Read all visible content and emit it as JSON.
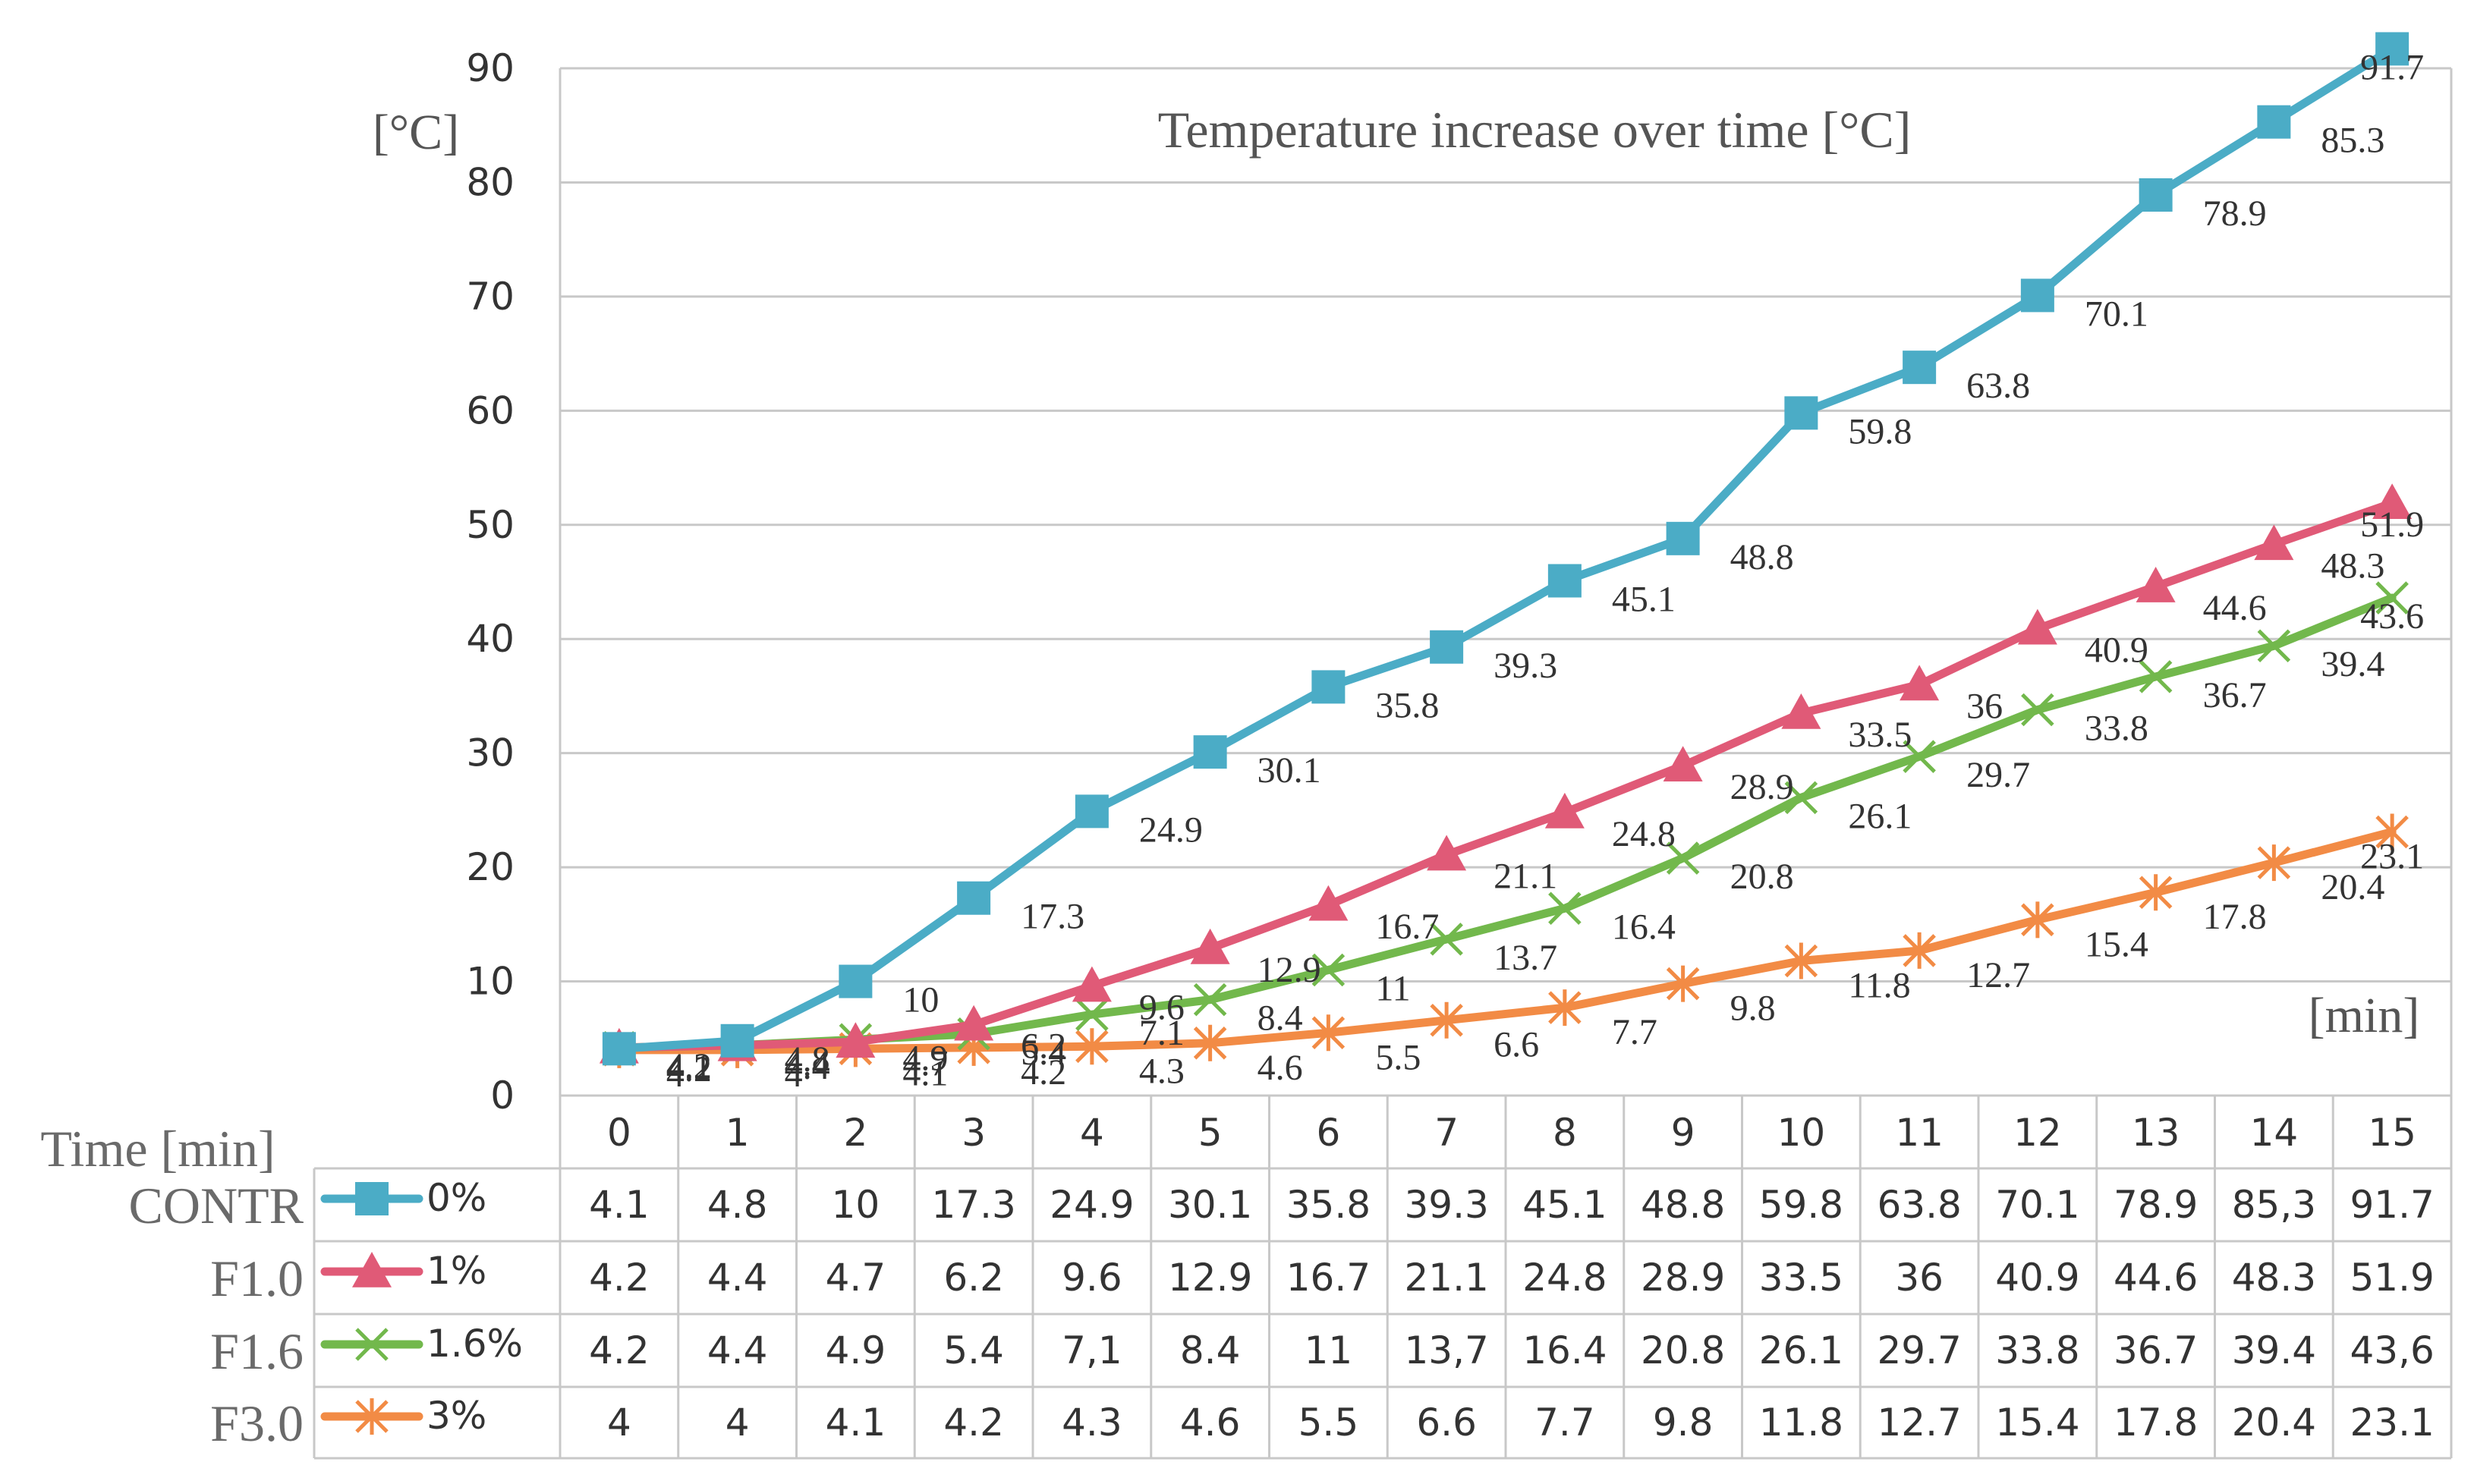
{
  "chart_data": {
    "type": "line",
    "title": "Temperature increase over time [°C]",
    "ylabel": "[°C]",
    "xlabel": "[min]",
    "table_header": "Time [min]",
    "ylim": [
      0,
      90
    ],
    "yticks": [
      "0",
      "10",
      "20",
      "30",
      "40",
      "50",
      "60",
      "70",
      "80",
      "90"
    ],
    "x": [
      0,
      1,
      2,
      3,
      4,
      5,
      6,
      7,
      8,
      9,
      10,
      11,
      12,
      13,
      14,
      15
    ],
    "x_labels": [
      "0",
      "1",
      "2",
      "3",
      "4",
      "5",
      "6",
      "7",
      "8",
      "9",
      "10",
      "11",
      "12",
      "13",
      "14",
      "15"
    ],
    "grid": true,
    "series": [
      {
        "name": "CONTR",
        "legend": "0%",
        "color": "#4bacc6",
        "marker": "square",
        "values": [
          4.1,
          4.8,
          10,
          17.3,
          24.9,
          30.1,
          35.8,
          39.3,
          45.1,
          48.8,
          59.8,
          63.8,
          70.1,
          78.9,
          85.3,
          91.7
        ],
        "labels": [
          "4.1",
          "4.8",
          "10",
          "17.3",
          "24.9",
          "30.1",
          "35.8",
          "39.3",
          "45.1",
          "48.8",
          "59.8",
          "63.8",
          "70.1",
          "78.9",
          "85.3",
          "91.7"
        ],
        "table": [
          "4.1",
          "4.8",
          "10",
          "17.3",
          "24.9",
          "30.1",
          "35.8",
          "39.3",
          "45.1",
          "48.8",
          "59.8",
          "63.8",
          "70.1",
          "78.9",
          "85,3",
          "91.7"
        ]
      },
      {
        "name": "F1.0",
        "legend": "1%",
        "color": "#e05a77",
        "marker": "triangle",
        "values": [
          4.2,
          4.4,
          4.7,
          6.2,
          9.6,
          12.9,
          16.7,
          21.1,
          24.8,
          28.9,
          33.5,
          36,
          40.9,
          44.6,
          48.3,
          51.9
        ],
        "labels": [
          "4.2",
          "4.4",
          "4.7",
          "6.2",
          "9.6",
          "12.9",
          "16.7",
          "21.1",
          "24.8",
          "28.9",
          "33.5",
          "36",
          "40.9",
          "44.6",
          "48.3",
          "51.9"
        ],
        "table": [
          "4.2",
          "4.4",
          "4.7",
          "6.2",
          "9.6",
          "12.9",
          "16.7",
          "21.1",
          "24.8",
          "28.9",
          "33.5",
          "36",
          "40.9",
          "44.6",
          "48.3",
          "51.9"
        ]
      },
      {
        "name": "F1.6",
        "legend": "1.6%",
        "color": "#72b84c",
        "marker": "x",
        "values": [
          4.2,
          4.4,
          4.9,
          5.4,
          7.1,
          8.4,
          11,
          13.7,
          16.4,
          20.8,
          26.1,
          29.7,
          33.8,
          36.7,
          39.4,
          43.6
        ],
        "labels": [
          "4.2",
          "4.4",
          "4.9",
          "5.4",
          "7.1",
          "8.4",
          "11",
          "13.7",
          "16.4",
          "20.8",
          "26.1",
          "29.7",
          "33.8",
          "36.7",
          "39.4",
          "43.6"
        ],
        "table": [
          "4.2",
          "4.4",
          "4.9",
          "5.4",
          "7,1",
          "8.4",
          "11",
          "13,7",
          "16.4",
          "20.8",
          "26.1",
          "29.7",
          "33.8",
          "36.7",
          "39.4",
          "43,6"
        ]
      },
      {
        "name": "F3.0",
        "legend": "3%",
        "color": "#f28b45",
        "marker": "star",
        "values": [
          4,
          4,
          4.1,
          4.2,
          4.3,
          4.6,
          5.5,
          6.6,
          7.7,
          9.8,
          11.8,
          12.7,
          15.4,
          17.8,
          20.4,
          23.1
        ],
        "labels": [
          "4",
          "4",
          "4.1",
          "4.2",
          "4.3",
          "4.6",
          "5.5",
          "6.6",
          "7.7",
          "9.8",
          "11.8",
          "12.7",
          "15.4",
          "17.8",
          "20.4",
          "23.1"
        ],
        "table": [
          "4",
          "4",
          "4.1",
          "4.2",
          "4.3",
          "4.6",
          "5.5",
          "6.6",
          "7.7",
          "9.8",
          "11.8",
          "12.7",
          "15.4",
          "17.8",
          "20.4",
          "23.1"
        ]
      }
    ]
  }
}
